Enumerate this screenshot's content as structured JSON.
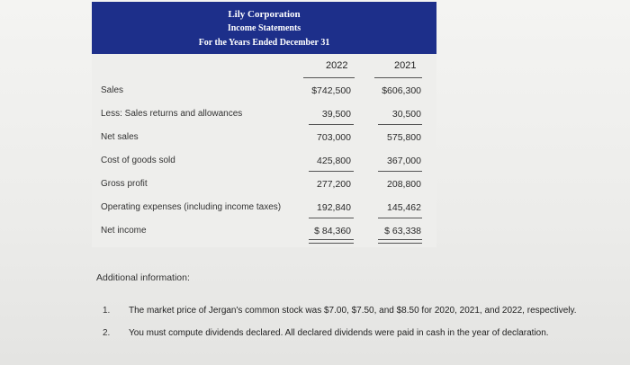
{
  "header": {
    "company": "Lily Corporation",
    "statement": "Income Statements",
    "period": "For the Years Ended December 31"
  },
  "columns": [
    "2022",
    "2021"
  ],
  "rows": [
    {
      "label": "Sales",
      "v2022": "$742,500",
      "v2021": "$606,300"
    },
    {
      "label": "Less: Sales returns and allowances",
      "v2022": "39,500",
      "v2021": "30,500"
    },
    {
      "label": "Net sales",
      "v2022": "703,000",
      "v2021": "575,800"
    },
    {
      "label": "Cost of goods sold",
      "v2022": "425,800",
      "v2021": "367,000"
    },
    {
      "label": "Gross profit",
      "v2022": "277,200",
      "v2021": "208,800"
    },
    {
      "label": "Operating expenses (including income taxes)",
      "v2022": "192,840",
      "v2021": "145,462"
    },
    {
      "label": "Net income",
      "v2022": "$ 84,360",
      "v2021": "$ 63,338"
    }
  ],
  "additional": {
    "title": "Additional information:",
    "notes": [
      {
        "num": "1.",
        "text": "The market price of Jergan's common stock was $7.00, $7.50, and $8.50 for 2020, 2021, and 2022, respectively."
      },
      {
        "num": "2.",
        "text": "You must compute dividends declared. All declared dividends were paid in cash in the year of declaration."
      }
    ]
  }
}
